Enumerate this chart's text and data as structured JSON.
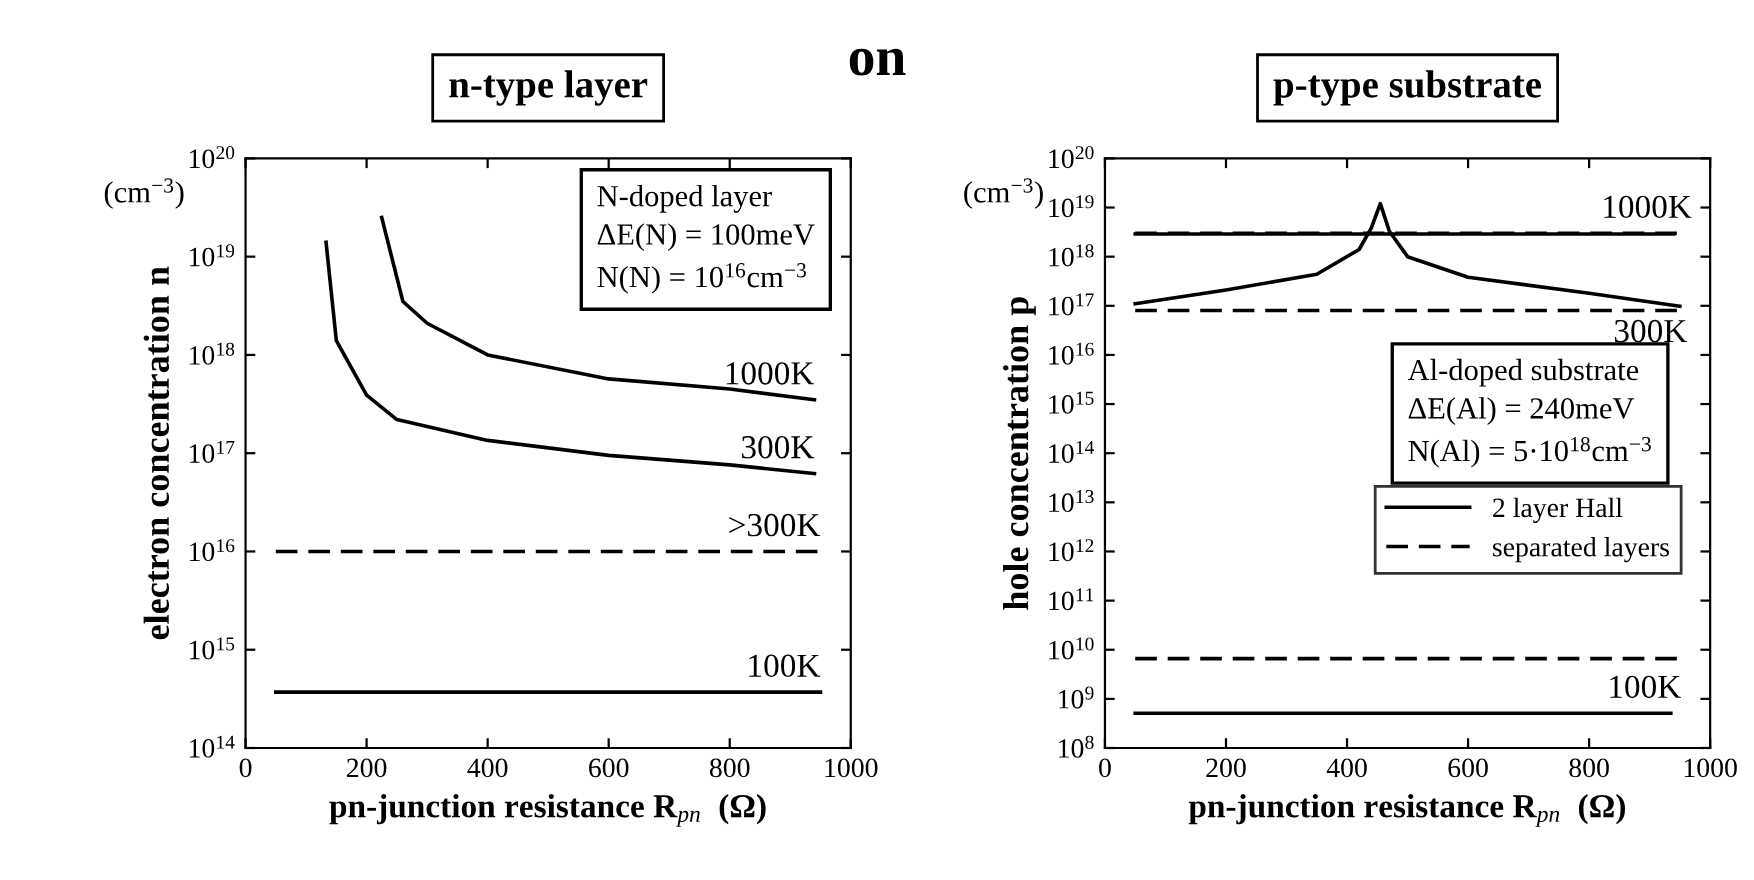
{
  "chart_data": [
    {
      "type": "line",
      "title": "n-type layer",
      "xlabel": "pn-junction resistance R$_{pn}$  (Ω)",
      "ylabel": "electron concentration n",
      "log": "y",
      "grid": false,
      "legend": "right",
      "xlim": [
        0,
        1000
      ],
      "xticks": [
        0,
        200,
        400,
        600,
        800,
        1000
      ],
      "ylim": [
        100000000000000.0,
        1e+20
      ],
      "yticks": [
        {
          "value": 100000000000000.0,
          "label": "10$^{14}$"
        },
        {
          "value": 1000000000000000.0,
          "label": "10$^{15}$"
        },
        {
          "value": 1e+16,
          "label": "10$^{16}$"
        },
        {
          "value": 1e+17,
          "label": "10$^{17}$"
        },
        {
          "value": 1e+18,
          "label": "10$^{18}$"
        },
        {
          "value": 1e+19,
          "label": "10$^{19}$"
        },
        {
          "value": 1e+20,
          "label": "10$^{20}$"
        }
      ],
      "annotations": [
        "(cm$^{−3}$)",
        "N-doped layer\nΔE(N) = 100meV\nN(N) = 10$^{16}$cm$^{−3}$",
        "on"
      ],
      "series": [
        {
          "name": "1000K",
          "color": "#000000",
          "line_style": "solid",
          "x": [
            225,
            260,
            300,
            400,
            600,
            800,
            940
          ],
          "values": [
            2.5e+19,
            3.5e+18,
            2.1e+18,
            1e+18,
            5.7e+17,
            4.5e+17,
            3.5e+17
          ]
        },
        {
          "name": "300K",
          "color": "#000000",
          "line_style": "solid",
          "x": [
            133,
            150,
            200,
            250,
            400,
            600,
            800,
            940
          ],
          "values": [
            1.4e+19,
            1.4e+18,
            3.9e+17,
            2.2e+17,
            1.35e+17,
            9.5e+16,
            7.6e+16,
            6.2e+16
          ]
        },
        {
          "name": ">300K",
          "color": "#000000",
          "line_style": "dashed",
          "x": [
            50,
            950
          ],
          "values": [
            1e+16,
            1e+16
          ]
        },
        {
          "name": "100K",
          "color": "#000000",
          "line_style": "solid",
          "x": [
            50,
            950
          ],
          "values": [
            370000000000000.0,
            370000000000000.0
          ]
        }
      ]
    },
    {
      "type": "line",
      "title": "p-type substrate",
      "xlabel": "pn-junction resistance R$_{pn}$  (Ω)",
      "ylabel": "hole concentration p",
      "log": "y",
      "grid": false,
      "legend": "center right",
      "xlim": [
        0,
        1000
      ],
      "xticks": [
        0,
        200,
        400,
        600,
        800,
        1000
      ],
      "ylim": [
        100000000.0,
        1e+20
      ],
      "yticks": [
        {
          "value": 100000000.0,
          "label": "10$^{8}$"
        },
        {
          "value": 1000000000.0,
          "label": "10$^{9}$"
        },
        {
          "value": 10000000000.0,
          "label": "10$^{10}$"
        },
        {
          "value": 100000000000.0,
          "label": "10$^{11}$"
        },
        {
          "value": 1000000000000.0,
          "label": "10$^{12}$"
        },
        {
          "value": 10000000000000.0,
          "label": "10$^{13}$"
        },
        {
          "value": 100000000000000.0,
          "label": "10$^{14}$"
        },
        {
          "value": 1000000000000000.0,
          "label": "10$^{15}$"
        },
        {
          "value": 1e+16,
          "label": "10$^{16}$"
        },
        {
          "value": 1e+17,
          "label": "10$^{17}$"
        },
        {
          "value": 1e+18,
          "label": "10$^{18}$"
        },
        {
          "value": 1e+19,
          "label": "10$^{19}$"
        },
        {
          "value": 1e+20,
          "label": "10$^{20}$"
        }
      ],
      "annotations": [
        "(cm$^{−3}$)",
        "Al-doped substrate\nΔE(Al) = 240meV\nN(Al) = 5·10$^{18}$cm$^{−3}$",
        {
          "text": "1000K",
          "x": 820,
          "y": 3e+18
        },
        {
          "text": "300K",
          "x": 840,
          "y": 8e+16
        },
        {
          "text": "100K",
          "x": 830,
          "y": 510000000.0
        }
      ],
      "series": [
        {
          "name": "2 layer Hall",
          "color": "#000000",
          "line_style": "solid",
          "x": [
            50,
            940
          ],
          "values": [
            2.9e+18,
            2.9e+18
          ]
        },
        {
          "name": "separated layers",
          "color": "#000000",
          "line_style": "dashed",
          "x": [
            50,
            950
          ],
          "values": [
            3e+18,
            3e+18
          ]
        },
        {
          "color": "#000000",
          "line_style": "solid",
          "x": [
            50,
            200,
            350,
            420,
            440,
            455,
            470,
            500,
            600,
            800,
            950
          ],
          "values": [
            1.1e+17,
            2.1e+17,
            4.4e+17,
            1.4e+18,
            3.8e+18,
            1.2e+19,
            3.3e+18,
            1e+18,
            3.8e+17,
            1.8e+17,
            9.8e+16
          ]
        },
        {
          "color": "#000000",
          "line_style": "dashed",
          "x": [
            50,
            950
          ],
          "values": [
            8e+16,
            8e+16
          ]
        },
        {
          "color": "#000000",
          "line_style": "dashed",
          "x": [
            50,
            950
          ],
          "values": [
            6600000000.0,
            6600000000.0
          ]
        },
        {
          "color": "#000000",
          "line_style": "solid",
          "x": [
            50,
            935
          ],
          "values": [
            510000000.0,
            510000000.0
          ]
        }
      ]
    }
  ]
}
